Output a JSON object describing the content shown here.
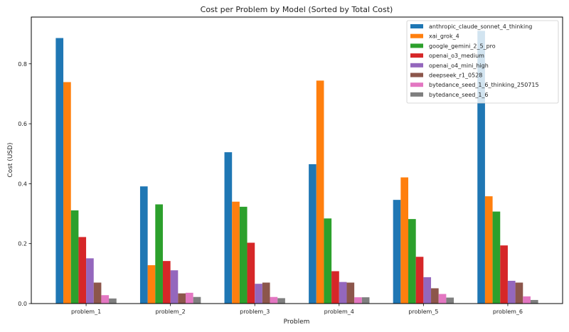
{
  "chart_data": {
    "type": "bar",
    "title": "Cost per Problem by Model (Sorted by Total Cost)",
    "xlabel": "Problem",
    "ylabel": "Cost (USD)",
    "ylim": [
      0,
      0.956
    ],
    "yticks": [
      "0.0",
      "0.2",
      "0.4",
      "0.6",
      "0.8"
    ],
    "grid": false,
    "legend_position": "top-right",
    "categories": [
      "problem_1",
      "problem_2",
      "problem_3",
      "problem_4",
      "problem_5",
      "problem_6"
    ],
    "series": [
      {
        "name": "anthropic_claude_sonnet_4_thinking",
        "color": "#1f77b4",
        "values": [
          0.886,
          0.391,
          0.505,
          0.465,
          0.346,
          0.91
        ]
      },
      {
        "name": "xai_grok_4",
        "color": "#ff7f0e",
        "values": [
          0.739,
          0.128,
          0.34,
          0.744,
          0.421,
          0.358
        ]
      },
      {
        "name": "google_gemini_2_5_pro",
        "color": "#2ca02c",
        "values": [
          0.311,
          0.331,
          0.323,
          0.284,
          0.282,
          0.307
        ]
      },
      {
        "name": "openai_o3_medium",
        "color": "#d62728",
        "values": [
          0.222,
          0.142,
          0.203,
          0.108,
          0.156,
          0.194
        ]
      },
      {
        "name": "openai_o4_mini_high",
        "color": "#9467bd",
        "values": [
          0.151,
          0.111,
          0.066,
          0.072,
          0.088,
          0.076
        ]
      },
      {
        "name": "deepseek_r1_0528",
        "color": "#8c564b",
        "values": [
          0.07,
          0.034,
          0.07,
          0.07,
          0.051,
          0.07
        ]
      },
      {
        "name": "bytedance_seed_1_6_thinking_250715",
        "color": "#e377c2",
        "values": [
          0.028,
          0.036,
          0.022,
          0.021,
          0.032,
          0.024
        ]
      },
      {
        "name": "bytedance_seed_1_6",
        "color": "#7f7f7f",
        "values": [
          0.017,
          0.022,
          0.018,
          0.021,
          0.02,
          0.012
        ]
      }
    ]
  }
}
